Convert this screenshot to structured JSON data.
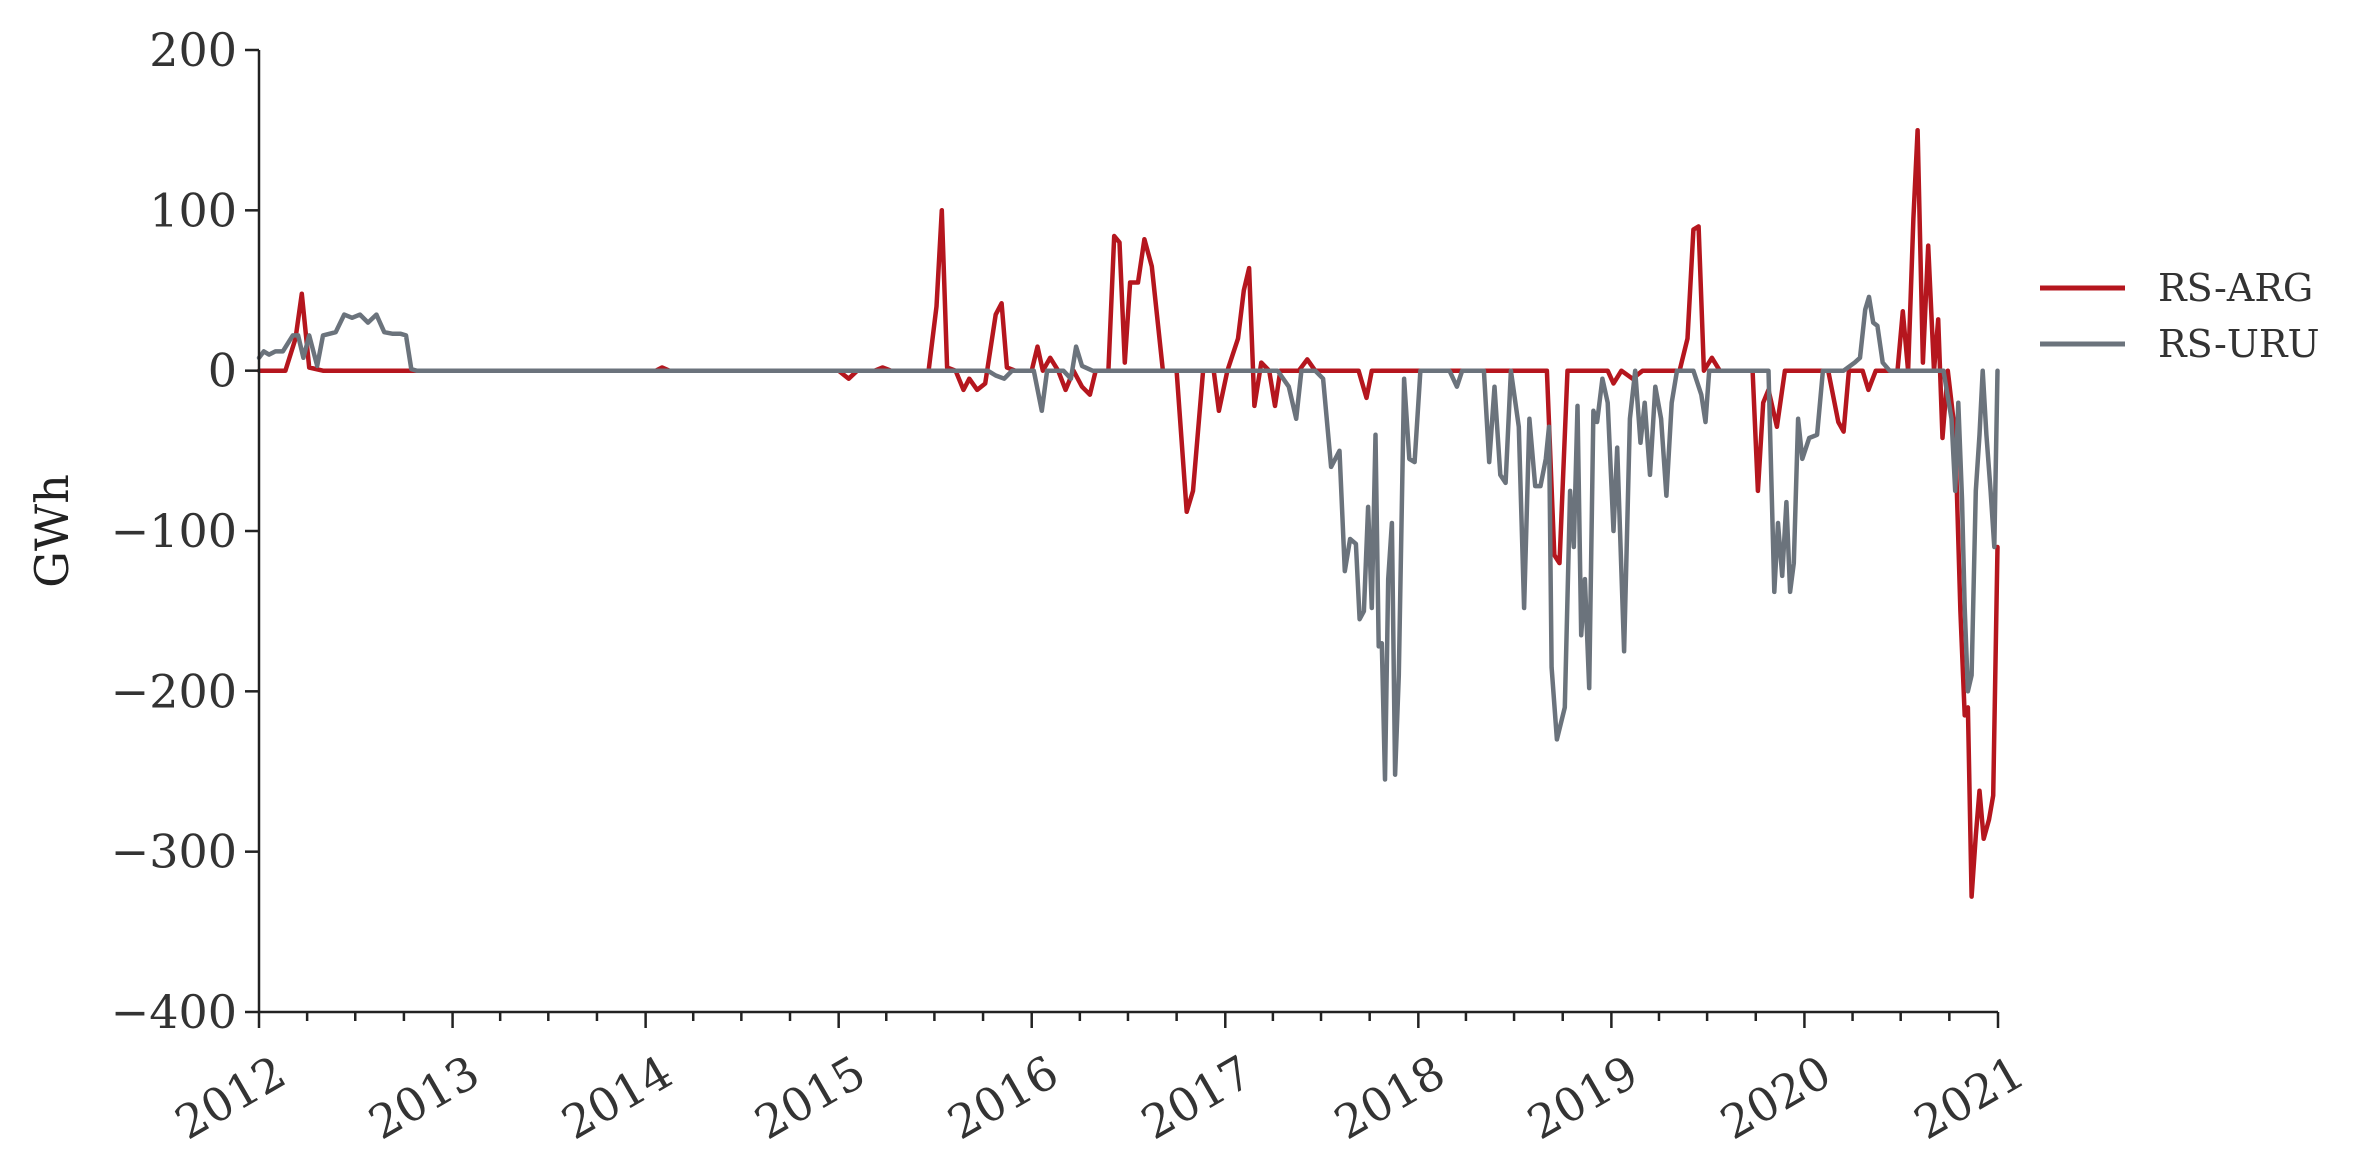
{
  "chart_data": {
    "type": "line",
    "title": "",
    "xlabel": "",
    "ylabel": "GWh",
    "xlim": [
      "2012-01-01",
      "2021-01-01"
    ],
    "ylim": [
      -400,
      200
    ],
    "xticks": [
      "2012",
      "2013",
      "2014",
      "2015",
      "2016",
      "2017",
      "2018",
      "2019",
      "2020",
      "2021"
    ],
    "yticks": [
      "200",
      "100",
      "0",
      "−100",
      "−200",
      "−300",
      "−400"
    ],
    "ytick_values": [
      200,
      100,
      0,
      -100,
      -200,
      -300,
      -400
    ],
    "grid": false,
    "legend": "right",
    "series": [
      {
        "name": "RS-ARG",
        "color": "#b5161e",
        "points": [
          [
            "2012-01-01",
            0
          ],
          [
            "2012-02-20",
            0
          ],
          [
            "2012-03-10",
            20
          ],
          [
            "2012-03-22",
            48
          ],
          [
            "2012-04-05",
            2
          ],
          [
            "2012-05-01",
            0
          ],
          [
            "2012-06-01",
            0
          ],
          [
            "2012-10-01",
            0
          ],
          [
            "2013-06-01",
            0
          ],
          [
            "2014-01-20",
            0
          ],
          [
            "2014-02-01",
            2
          ],
          [
            "2014-02-15",
            0
          ],
          [
            "2014-10-01",
            0
          ],
          [
            "2015-01-01",
            0
          ],
          [
            "2015-01-20",
            -5
          ],
          [
            "2015-02-05",
            0
          ],
          [
            "2015-03-10",
            0
          ],
          [
            "2015-03-25",
            2
          ],
          [
            "2015-04-10",
            0
          ],
          [
            "2015-06-20",
            0
          ],
          [
            "2015-07-05",
            40
          ],
          [
            "2015-07-15",
            100
          ],
          [
            "2015-07-25",
            2
          ],
          [
            "2015-08-10",
            0
          ],
          [
            "2015-08-25",
            -12
          ],
          [
            "2015-09-05",
            -5
          ],
          [
            "2015-09-20",
            -12
          ],
          [
            "2015-10-05",
            -8
          ],
          [
            "2015-10-25",
            35
          ],
          [
            "2015-11-05",
            42
          ],
          [
            "2015-11-15",
            2
          ],
          [
            "2015-12-01",
            0
          ],
          [
            "2016-01-01",
            0
          ],
          [
            "2016-01-12",
            15
          ],
          [
            "2016-01-22",
            0
          ],
          [
            "2016-02-05",
            8
          ],
          [
            "2016-02-20",
            0
          ],
          [
            "2016-03-05",
            -12
          ],
          [
            "2016-03-20",
            0
          ],
          [
            "2016-04-05",
            -10
          ],
          [
            "2016-04-20",
            -15
          ],
          [
            "2016-05-01",
            0
          ],
          [
            "2016-05-25",
            0
          ],
          [
            "2016-06-05",
            84
          ],
          [
            "2016-06-15",
            80
          ],
          [
            "2016-06-25",
            5
          ],
          [
            "2016-07-05",
            55
          ],
          [
            "2016-07-20",
            55
          ],
          [
            "2016-08-01",
            82
          ],
          [
            "2016-08-15",
            65
          ],
          [
            "2016-09-05",
            0
          ],
          [
            "2016-10-01",
            0
          ],
          [
            "2016-10-20",
            -88
          ],
          [
            "2016-11-01",
            -75
          ],
          [
            "2016-11-20",
            0
          ],
          [
            "2016-12-10",
            0
          ],
          [
            "2016-12-20",
            -25
          ],
          [
            "2017-01-05",
            0
          ],
          [
            "2017-01-25",
            20
          ],
          [
            "2017-02-05",
            50
          ],
          [
            "2017-02-15",
            64
          ],
          [
            "2017-02-25",
            -22
          ],
          [
            "2017-03-10",
            5
          ],
          [
            "2017-03-25",
            0
          ],
          [
            "2017-04-05",
            -22
          ],
          [
            "2017-04-15",
            0
          ],
          [
            "2017-05-20",
            0
          ],
          [
            "2017-06-05",
            7
          ],
          [
            "2017-06-20",
            0
          ],
          [
            "2017-09-10",
            0
          ],
          [
            "2017-09-25",
            -17
          ],
          [
            "2017-10-05",
            0
          ],
          [
            "2018-09-01",
            0
          ],
          [
            "2018-09-15",
            -115
          ],
          [
            "2018-09-25",
            -120
          ],
          [
            "2018-10-10",
            0
          ],
          [
            "2018-12-25",
            0
          ],
          [
            "2019-01-05",
            -8
          ],
          [
            "2019-01-20",
            0
          ],
          [
            "2019-02-10",
            -5
          ],
          [
            "2019-03-01",
            0
          ],
          [
            "2019-05-10",
            0
          ],
          [
            "2019-05-25",
            20
          ],
          [
            "2019-06-05",
            88
          ],
          [
            "2019-06-15",
            90
          ],
          [
            "2019-06-25",
            0
          ],
          [
            "2019-07-10",
            8
          ],
          [
            "2019-07-25",
            0
          ],
          [
            "2019-09-25",
            0
          ],
          [
            "2019-10-05",
            -75
          ],
          [
            "2019-10-15",
            -20
          ],
          [
            "2019-10-25",
            -12
          ],
          [
            "2019-11-10",
            -35
          ],
          [
            "2019-11-25",
            0
          ],
          [
            "2019-12-15",
            0
          ],
          [
            "2020-01-05",
            0
          ],
          [
            "2020-02-15",
            0
          ],
          [
            "2020-03-05",
            -32
          ],
          [
            "2020-03-15",
            -38
          ],
          [
            "2020-03-25",
            0
          ],
          [
            "2020-04-20",
            0
          ],
          [
            "2020-05-01",
            -12
          ],
          [
            "2020-05-15",
            0
          ],
          [
            "2020-06-25",
            0
          ],
          [
            "2020-07-05",
            37
          ],
          [
            "2020-07-15",
            0
          ],
          [
            "2020-07-25",
            95
          ],
          [
            "2020-08-02",
            150
          ],
          [
            "2020-08-12",
            5
          ],
          [
            "2020-08-22",
            78
          ],
          [
            "2020-09-02",
            0
          ],
          [
            "2020-09-10",
            32
          ],
          [
            "2020-09-18",
            -42
          ],
          [
            "2020-09-28",
            0
          ],
          [
            "2020-10-12",
            -40
          ],
          [
            "2020-10-22",
            -150
          ],
          [
            "2020-10-30",
            -215
          ],
          [
            "2020-11-05",
            -210
          ],
          [
            "2020-11-12",
            -328
          ],
          [
            "2020-11-20",
            -290
          ],
          [
            "2020-11-27",
            -262
          ],
          [
            "2020-12-05",
            -292
          ],
          [
            "2020-12-15",
            -280
          ],
          [
            "2020-12-23",
            -265
          ],
          [
            "2020-12-31",
            -110
          ]
        ]
      },
      {
        "name": "RS-URU",
        "color": "#6b737c",
        "points": [
          [
            "2012-01-01",
            8
          ],
          [
            "2012-01-10",
            12
          ],
          [
            "2012-01-20",
            10
          ],
          [
            "2012-02-01",
            12
          ],
          [
            "2012-02-15",
            12
          ],
          [
            "2012-03-05",
            22
          ],
          [
            "2012-03-15",
            22
          ],
          [
            "2012-03-25",
            8
          ],
          [
            "2012-04-05",
            22
          ],
          [
            "2012-04-20",
            3
          ],
          [
            "2012-05-01",
            22
          ],
          [
            "2012-05-25",
            24
          ],
          [
            "2012-06-10",
            35
          ],
          [
            "2012-06-25",
            33
          ],
          [
            "2012-07-10",
            35
          ],
          [
            "2012-07-25",
            30
          ],
          [
            "2012-08-10",
            35
          ],
          [
            "2012-08-25",
            24
          ],
          [
            "2012-09-10",
            23
          ],
          [
            "2012-09-25",
            23
          ],
          [
            "2012-10-05",
            22
          ],
          [
            "2012-10-15",
            1
          ],
          [
            "2012-10-25",
            0
          ],
          [
            "2013-06-01",
            0
          ],
          [
            "2014-06-01",
            0
          ],
          [
            "2015-06-01",
            0
          ],
          [
            "2015-09-01",
            0
          ],
          [
            "2015-09-15",
            0
          ],
          [
            "2015-10-10",
            0
          ],
          [
            "2015-10-25",
            -3
          ],
          [
            "2015-11-10",
            -5
          ],
          [
            "2015-11-25",
            0
          ],
          [
            "2015-12-15",
            0
          ],
          [
            "2016-01-05",
            0
          ],
          [
            "2016-01-20",
            -25
          ],
          [
            "2016-01-30",
            0
          ],
          [
            "2016-02-15",
            0
          ],
          [
            "2016-03-01",
            0
          ],
          [
            "2016-03-15",
            -5
          ],
          [
            "2016-03-25",
            15
          ],
          [
            "2016-04-05",
            3
          ],
          [
            "2016-04-25",
            0
          ],
          [
            "2016-06-01",
            0
          ],
          [
            "2016-12-01",
            0
          ],
          [
            "2017-03-20",
            0
          ],
          [
            "2017-04-10",
            0
          ],
          [
            "2017-05-01",
            -10
          ],
          [
            "2017-05-15",
            -30
          ],
          [
            "2017-05-25",
            0
          ],
          [
            "2017-06-20",
            0
          ],
          [
            "2017-07-05",
            -5
          ],
          [
            "2017-07-20",
            -60
          ],
          [
            "2017-08-05",
            -50
          ],
          [
            "2017-08-15",
            -125
          ],
          [
            "2017-08-25",
            -105
          ],
          [
            "2017-09-05",
            -108
          ],
          [
            "2017-09-12",
            -155
          ],
          [
            "2017-09-20",
            -150
          ],
          [
            "2017-09-28",
            -85
          ],
          [
            "2017-10-05",
            -148
          ],
          [
            "2017-10-12",
            -40
          ],
          [
            "2017-10-18",
            -172
          ],
          [
            "2017-10-24",
            -170
          ],
          [
            "2017-10-30",
            -255
          ],
          [
            "2017-11-05",
            -130
          ],
          [
            "2017-11-12",
            -95
          ],
          [
            "2017-11-18",
            -252
          ],
          [
            "2017-11-25",
            -190
          ],
          [
            "2017-12-05",
            -5
          ],
          [
            "2017-12-15",
            -55
          ],
          [
            "2017-12-25",
            -57
          ],
          [
            "2018-01-05",
            0
          ],
          [
            "2018-03-01",
            0
          ],
          [
            "2018-03-15",
            -10
          ],
          [
            "2018-03-25",
            0
          ],
          [
            "2018-05-05",
            0
          ],
          [
            "2018-05-15",
            -57
          ],
          [
            "2018-05-25",
            -10
          ],
          [
            "2018-06-05",
            -65
          ],
          [
            "2018-06-15",
            -70
          ],
          [
            "2018-06-25",
            0
          ],
          [
            "2018-07-10",
            -35
          ],
          [
            "2018-07-20",
            -148
          ],
          [
            "2018-07-30",
            -30
          ],
          [
            "2018-08-10",
            -72
          ],
          [
            "2018-08-20",
            -72
          ],
          [
            "2018-08-30",
            -55
          ],
          [
            "2018-09-05",
            -35
          ],
          [
            "2018-09-10",
            -185
          ],
          [
            "2018-09-20",
            -230
          ],
          [
            "2018-10-05",
            -210
          ],
          [
            "2018-10-15",
            -75
          ],
          [
            "2018-10-22",
            -110
          ],
          [
            "2018-10-29",
            -22
          ],
          [
            "2018-11-05",
            -165
          ],
          [
            "2018-11-12",
            -130
          ],
          [
            "2018-11-20",
            -198
          ],
          [
            "2018-11-28",
            -25
          ],
          [
            "2018-12-05",
            -32
          ],
          [
            "2018-12-15",
            -5
          ],
          [
            "2018-12-25",
            -20
          ],
          [
            "2019-01-05",
            -100
          ],
          [
            "2019-01-12",
            -48
          ],
          [
            "2019-01-25",
            -175
          ],
          [
            "2019-02-05",
            -30
          ],
          [
            "2019-02-15",
            0
          ],
          [
            "2019-02-25",
            -45
          ],
          [
            "2019-03-05",
            -20
          ],
          [
            "2019-03-15",
            -65
          ],
          [
            "2019-03-25",
            -10
          ],
          [
            "2019-04-05",
            -30
          ],
          [
            "2019-04-15",
            -78
          ],
          [
            "2019-04-25",
            -20
          ],
          [
            "2019-05-05",
            0
          ],
          [
            "2019-05-20",
            0
          ],
          [
            "2019-06-05",
            0
          ],
          [
            "2019-06-20",
            -15
          ],
          [
            "2019-06-28",
            -32
          ],
          [
            "2019-07-05",
            0
          ],
          [
            "2019-07-20",
            0
          ],
          [
            "2019-09-25",
            0
          ],
          [
            "2019-10-25",
            0
          ],
          [
            "2019-11-05",
            -138
          ],
          [
            "2019-11-12",
            -95
          ],
          [
            "2019-11-20",
            -128
          ],
          [
            "2019-11-28",
            -82
          ],
          [
            "2019-12-05",
            -138
          ],
          [
            "2019-12-12",
            -120
          ],
          [
            "2019-12-20",
            -30
          ],
          [
            "2019-12-28",
            -55
          ],
          [
            "2020-01-10",
            -42
          ],
          [
            "2020-01-25",
            -40
          ],
          [
            "2020-02-05",
            0
          ],
          [
            "2020-03-01",
            0
          ],
          [
            "2020-03-15",
            0
          ],
          [
            "2020-04-05",
            5
          ],
          [
            "2020-04-15",
            8
          ],
          [
            "2020-04-25",
            38
          ],
          [
            "2020-05-02",
            46
          ],
          [
            "2020-05-10",
            30
          ],
          [
            "2020-05-18",
            28
          ],
          [
            "2020-05-28",
            5
          ],
          [
            "2020-06-10",
            0
          ],
          [
            "2020-07-20",
            0
          ],
          [
            "2020-09-10",
            0
          ],
          [
            "2020-09-20",
            0
          ],
          [
            "2020-10-05",
            -30
          ],
          [
            "2020-10-12",
            -75
          ],
          [
            "2020-10-18",
            -20
          ],
          [
            "2020-10-25",
            -80
          ],
          [
            "2020-10-30",
            -148
          ],
          [
            "2020-11-05",
            -200
          ],
          [
            "2020-11-12",
            -190
          ],
          [
            "2020-11-20",
            -75
          ],
          [
            "2020-11-27",
            -40
          ],
          [
            "2020-12-03",
            0
          ],
          [
            "2020-12-10",
            -40
          ],
          [
            "2020-12-18",
            -75
          ],
          [
            "2020-12-25",
            -110
          ],
          [
            "2020-12-31",
            0
          ]
        ]
      }
    ]
  }
}
